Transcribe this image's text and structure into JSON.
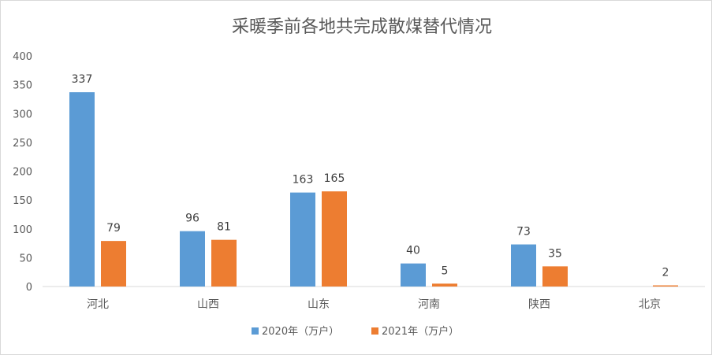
{
  "chart_data": {
    "type": "bar",
    "title": "采暖季前各地共完成散煤替代情况",
    "categories": [
      "河北",
      "山西",
      "山东",
      "河南",
      "陕西",
      "北京"
    ],
    "series": [
      {
        "name": "2020年（万户）",
        "color": "#5B9BD5",
        "values": [
          337,
          96,
          163,
          40,
          73,
          null
        ]
      },
      {
        "name": "2021年（万户）",
        "color": "#ED7D31",
        "values": [
          79,
          81,
          165,
          5,
          35,
          2
        ]
      }
    ],
    "yticks": [
      0,
      50,
      100,
      150,
      200,
      250,
      300,
      350,
      400
    ],
    "ylim": [
      0,
      400
    ],
    "grid": false,
    "legend": "bottom"
  }
}
